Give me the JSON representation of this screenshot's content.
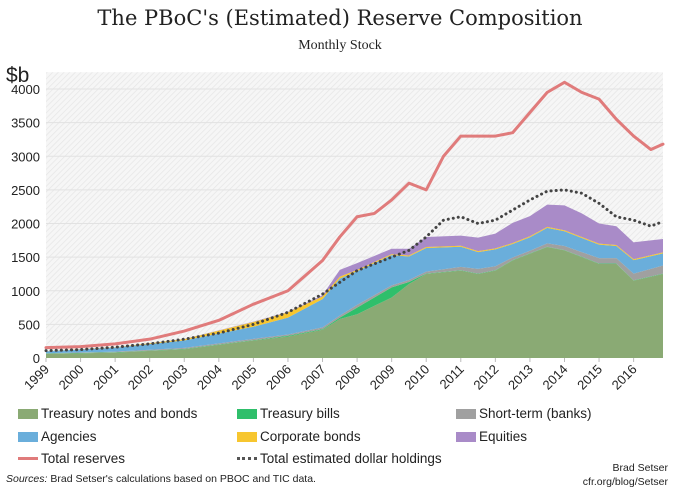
{
  "chart_data": {
    "type": "area",
    "title": "The PBoC's (Estimated) Reserve Composition",
    "subtitle": "Monthly Stock",
    "ylabel": "$b",
    "ylim": [
      0,
      4250
    ],
    "xlim": [
      1999,
      2016.85
    ],
    "yticks": [
      0,
      500,
      1000,
      1500,
      2000,
      2500,
      3000,
      3500,
      4000
    ],
    "xticks": [
      "1999",
      "2000",
      "2001",
      "2002",
      "2003",
      "2004",
      "2005",
      "2006",
      "2007",
      "2008",
      "2009",
      "2010",
      "2011",
      "2012",
      "2013",
      "2014",
      "2015",
      "2016"
    ],
    "grid": true,
    "legend_placement": "bottom",
    "x": [
      1999,
      2001,
      2003,
      2005,
      2006,
      2007,
      2007.5,
      2008,
      2009,
      2009.5,
      2010,
      2011,
      2011.5,
      2012,
      2012.5,
      2013,
      2013.5,
      2014,
      2014.5,
      2015,
      2015.5,
      2016,
      2016.85
    ],
    "stacked_series": [
      {
        "name": "Treasury notes and bonds",
        "color": "#8aaa74",
        "values": [
          60,
          80,
          130,
          260,
          320,
          420,
          580,
          650,
          900,
          1100,
          1250,
          1300,
          1250,
          1300,
          1450,
          1550,
          1650,
          1600,
          1500,
          1400,
          1400,
          1150,
          1250
        ]
      },
      {
        "name": "Treasury bills",
        "color": "#2fbf6b",
        "values": [
          5,
          5,
          5,
          5,
          10,
          10,
          20,
          100,
          150,
          30,
          5,
          5,
          5,
          5,
          5,
          5,
          5,
          5,
          5,
          5,
          5,
          5,
          5
        ]
      },
      {
        "name": "Short-term (banks)",
        "color": "#a0a0a0",
        "values": [
          5,
          10,
          15,
          20,
          20,
          25,
          30,
          40,
          30,
          30,
          30,
          50,
          70,
          60,
          40,
          40,
          50,
          60,
          70,
          80,
          80,
          100,
          120
        ]
      },
      {
        "name": "Agencies",
        "color": "#6aaedb",
        "values": [
          30,
          60,
          110,
          180,
          250,
          420,
          550,
          500,
          450,
          350,
          350,
          300,
          250,
          250,
          200,
          200,
          230,
          220,
          210,
          200,
          180,
          200,
          180
        ]
      },
      {
        "name": "Corporate bonds",
        "color": "#f7c62f",
        "values": [
          2,
          5,
          20,
          70,
          80,
          40,
          30,
          20,
          15,
          15,
          15,
          15,
          15,
          15,
          15,
          15,
          15,
          15,
          15,
          15,
          15,
          15,
          15
        ]
      },
      {
        "name": "Equities",
        "color": "#a98bc8",
        "values": [
          0,
          1,
          2,
          5,
          5,
          20,
          100,
          100,
          80,
          100,
          150,
          150,
          200,
          220,
          300,
          300,
          330,
          370,
          350,
          300,
          280,
          250,
          200
        ]
      }
    ],
    "line_series": [
      {
        "name": "Total reserves",
        "color": "#e07b7b",
        "style": "solid",
        "x": [
          1999,
          2000,
          2001,
          2002,
          2003,
          2004,
          2005,
          2006,
          2007,
          2007.5,
          2008,
          2008.5,
          2009,
          2009.5,
          2010,
          2010.5,
          2011,
          2011.5,
          2012,
          2012.5,
          2013,
          2013.5,
          2014,
          2014.5,
          2015,
          2015.5,
          2016,
          2016.5,
          2016.85
        ],
        "values": [
          155,
          170,
          210,
          280,
          400,
          560,
          800,
          1000,
          1450,
          1800,
          2100,
          2150,
          2350,
          2600,
          2500,
          3000,
          3300,
          3300,
          3300,
          3350,
          3650,
          3950,
          4100,
          3950,
          3850,
          3550,
          3300,
          3100,
          3180
        ]
      },
      {
        "name": "Total estimated dollar holdings",
        "color": "#444444",
        "style": "dotted",
        "x": [
          1999,
          2000,
          2001,
          2002,
          2003,
          2004,
          2005,
          2006,
          2007,
          2008,
          2008.5,
          2009,
          2009.5,
          2010,
          2010.5,
          2011,
          2011.5,
          2012,
          2012.5,
          2013,
          2013.5,
          2014,
          2014.5,
          2015,
          2015.5,
          2016,
          2016.5,
          2016.85
        ],
        "values": [
          110,
          125,
          160,
          210,
          280,
          370,
          500,
          680,
          950,
          1300,
          1400,
          1500,
          1600,
          1800,
          2050,
          2100,
          2000,
          2050,
          2200,
          2350,
          2480,
          2500,
          2450,
          2300,
          2100,
          2050,
          1960,
          2030
        ]
      }
    ]
  },
  "legend": {
    "items": [
      "Treasury notes and bonds",
      "Treasury bills",
      "Short-term (banks)",
      "Agencies",
      "Corporate bonds",
      "Equities",
      "Total reserves",
      "Total estimated dollar holdings"
    ]
  },
  "footer": {
    "sources_label": "Sources:",
    "sources_text": " Brad Setser's calculations based on PBOC and TIC data.",
    "author": "Brad Setser",
    "site": "cfr.org/blog/Setser"
  }
}
